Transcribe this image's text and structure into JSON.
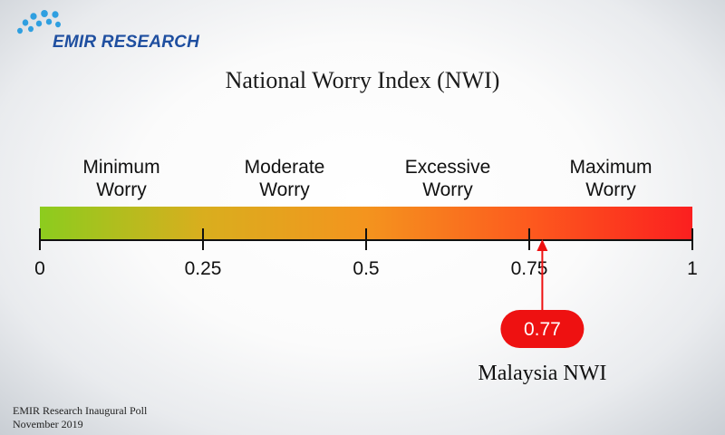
{
  "brand": {
    "name": "EMIR RESEARCH",
    "logo_color": "#1f4fa0",
    "dot_color": "#2f9fe0"
  },
  "chart_data": {
    "type": "gauge",
    "title": "National Worry Index (NWI)",
    "xlim": [
      0,
      1
    ],
    "ticks": [
      {
        "value": 0,
        "label": "0"
      },
      {
        "value": 0.25,
        "label": "0.25"
      },
      {
        "value": 0.5,
        "label": "0.5"
      },
      {
        "value": 0.75,
        "label": "0.75"
      },
      {
        "value": 1,
        "label": "1"
      }
    ],
    "categories": [
      {
        "line1": "Minimum",
        "line2": "Worry",
        "center": 0.125
      },
      {
        "line1": "Moderate",
        "line2": "Worry",
        "center": 0.375
      },
      {
        "line1": "Excessive",
        "line2": "Worry",
        "center": 0.625
      },
      {
        "line1": "Maximum",
        "line2": "Worry",
        "center": 0.875
      }
    ],
    "gradient_colors": [
      "#8ccc1e",
      "#d9ae1e",
      "#f4941e",
      "#fd5a1e",
      "#fb1f1f"
    ],
    "marker": {
      "value": 0.77,
      "value_label": "0.77",
      "label": "Malaysia NWI",
      "color": "#ee1111"
    }
  },
  "footer": {
    "line1": "EMIR Research Inaugural Poll",
    "line2": "November 2019"
  }
}
